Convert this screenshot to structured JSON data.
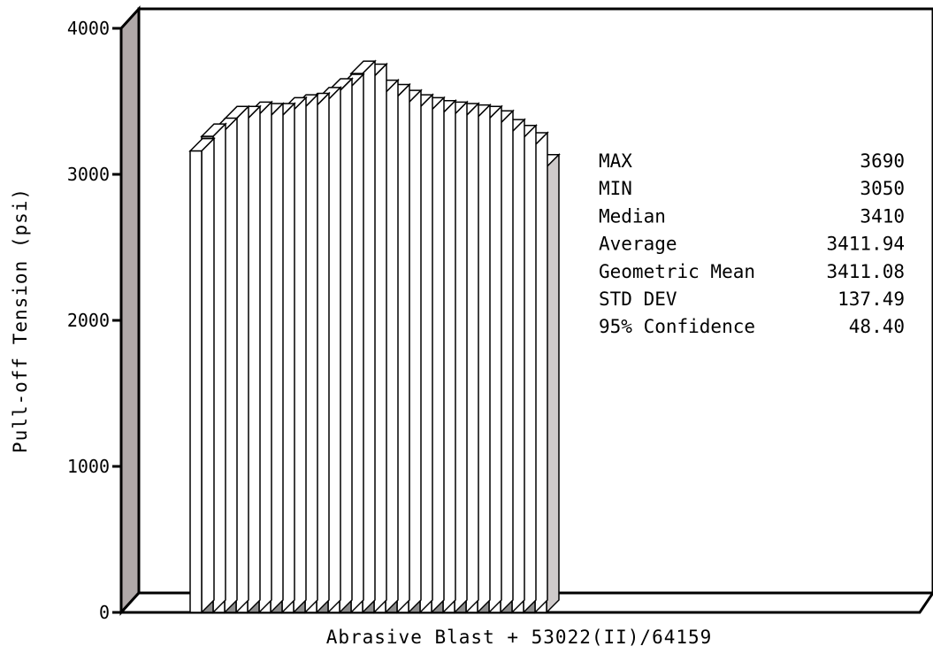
{
  "chart_data": {
    "type": "bar",
    "style": "3d",
    "title": "",
    "xlabel": "Abrasive Blast + 53022(II)/64159",
    "ylabel": "Pull-off Tension (psi)",
    "ylim": [
      0,
      4000
    ],
    "yticks": [
      "0",
      "1000",
      "2000",
      "3000",
      "4000"
    ],
    "grid": false,
    "legend": "none",
    "bar_colors": [
      "#ffffff",
      "#8c8c8c"
    ],
    "values": [
      3160,
      3260,
      3300,
      3380,
      3380,
      3410,
      3400,
      3400,
      3440,
      3460,
      3470,
      3510,
      3570,
      3600,
      3690,
      3670,
      3560,
      3530,
      3490,
      3460,
      3440,
      3420,
      3410,
      3400,
      3390,
      3380,
      3350,
      3290,
      3250,
      3200,
      3050
    ],
    "stats_box": [
      {
        "label": "MAX",
        "value": "3690"
      },
      {
        "label": "MIN",
        "value": "3050"
      },
      {
        "label": "Median",
        "value": "3410"
      },
      {
        "label": "Average",
        "value": "3411.94"
      },
      {
        "label": "Geometric Mean",
        "value": "3411.08"
      },
      {
        "label": "STD DEV",
        "value": "137.49"
      },
      {
        "label": "95% Confidence",
        "value": "48.40"
      }
    ]
  }
}
